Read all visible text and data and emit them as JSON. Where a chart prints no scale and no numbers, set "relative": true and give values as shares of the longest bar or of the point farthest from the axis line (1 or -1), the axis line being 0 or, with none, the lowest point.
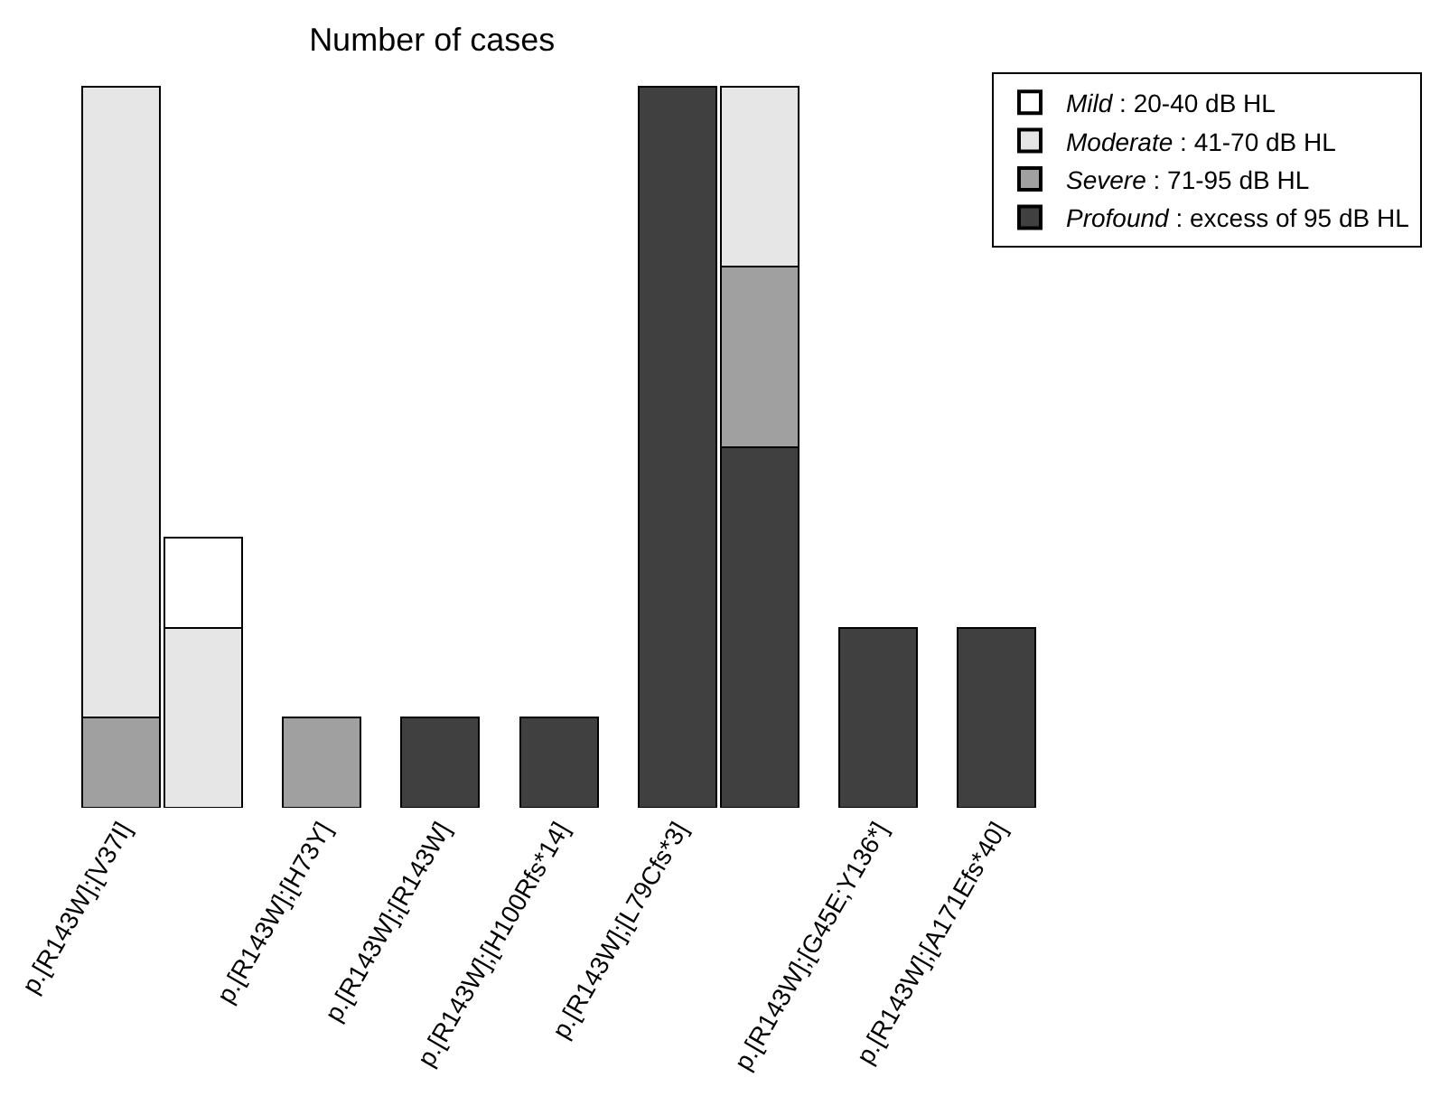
{
  "chart_data": {
    "type": "bar",
    "title": "Number of cases",
    "relative": true,
    "stacked": true,
    "legend": "top right",
    "categories": [
      "p.[R143W];[V37I]",
      null,
      "p.[R143W];[H73Y]",
      "p.[R143W];[R143W]",
      "p.[R143W];[H100Rfs*14]",
      "p.[R143W];[L79Cfs*3]",
      null,
      "p.[R143W];[G45E;Y136*]",
      "p.[R143W];[A171Efs*40]"
    ],
    "series": [
      {
        "name": "Profound : excess of 95 dB HL",
        "color": "#404040",
        "values": [
          null,
          null,
          null,
          0.125,
          0.125,
          1,
          0.5,
          0.25,
          0.25
        ]
      },
      {
        "name": "Severe : 71-95 dB HL",
        "color": "#a0a0a0",
        "values": [
          0.125,
          null,
          0.125,
          null,
          null,
          null,
          0.25,
          null,
          null
        ]
      },
      {
        "name": "Moderate : 41-70 dB HL",
        "color": "#e6e6e6",
        "values": [
          0.875,
          0.25,
          null,
          null,
          null,
          null,
          0.25,
          null,
          null
        ]
      },
      {
        "name": "Mild : 20-40 dB HL",
        "color": "#ffffff",
        "values": [
          null,
          0.125,
          null,
          null,
          null,
          null,
          null,
          null,
          null
        ]
      }
    ]
  }
}
